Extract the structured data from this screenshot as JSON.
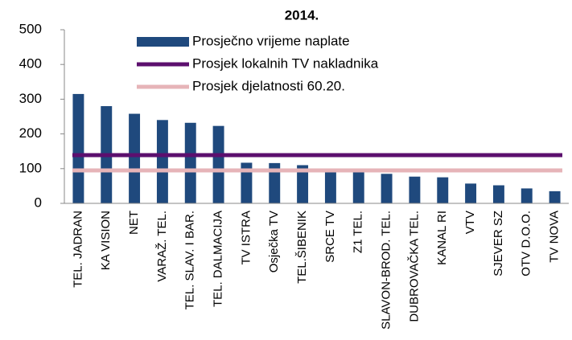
{
  "chart_data": {
    "type": "bar",
    "title": "2014.",
    "categories": [
      "TEL. JADRAN",
      "KA VISION",
      "NET",
      "VARAŽ. TEL.",
      "TEL. SLAV. I BAR.",
      "TEL. DALMACIJA",
      "TV ISTRA",
      "Osječka TV",
      "TEL.ŠIBENIK",
      "SRCE TV",
      "Z1 TEL.",
      "SLAVON-BROD. TEL.",
      "DUBROVAČKA TEL.",
      "KANAL RI",
      "VTV",
      "SJEVER SZ",
      "OTV D.O.O.",
      "TV NOVA"
    ],
    "series": [
      {
        "name": "Prosječno vrijeme naplate",
        "color": "#1f497d",
        "values": [
          315,
          280,
          258,
          240,
          232,
          223,
          117,
          116,
          110,
          95,
          90,
          85,
          77,
          75,
          57,
          52,
          43,
          35
        ]
      }
    ],
    "lines": [
      {
        "name": "Prosjek lokalnih TV nakladnika",
        "color": "#5c0f6e",
        "value": 139
      },
      {
        "name": "Prosjek djelatnosti 60.20.",
        "color": "#e6b4b8",
        "value": 95
      }
    ],
    "ylim": [
      0,
      500
    ],
    "yticks": [
      0,
      100,
      200,
      300,
      400,
      500
    ],
    "grid": false
  }
}
